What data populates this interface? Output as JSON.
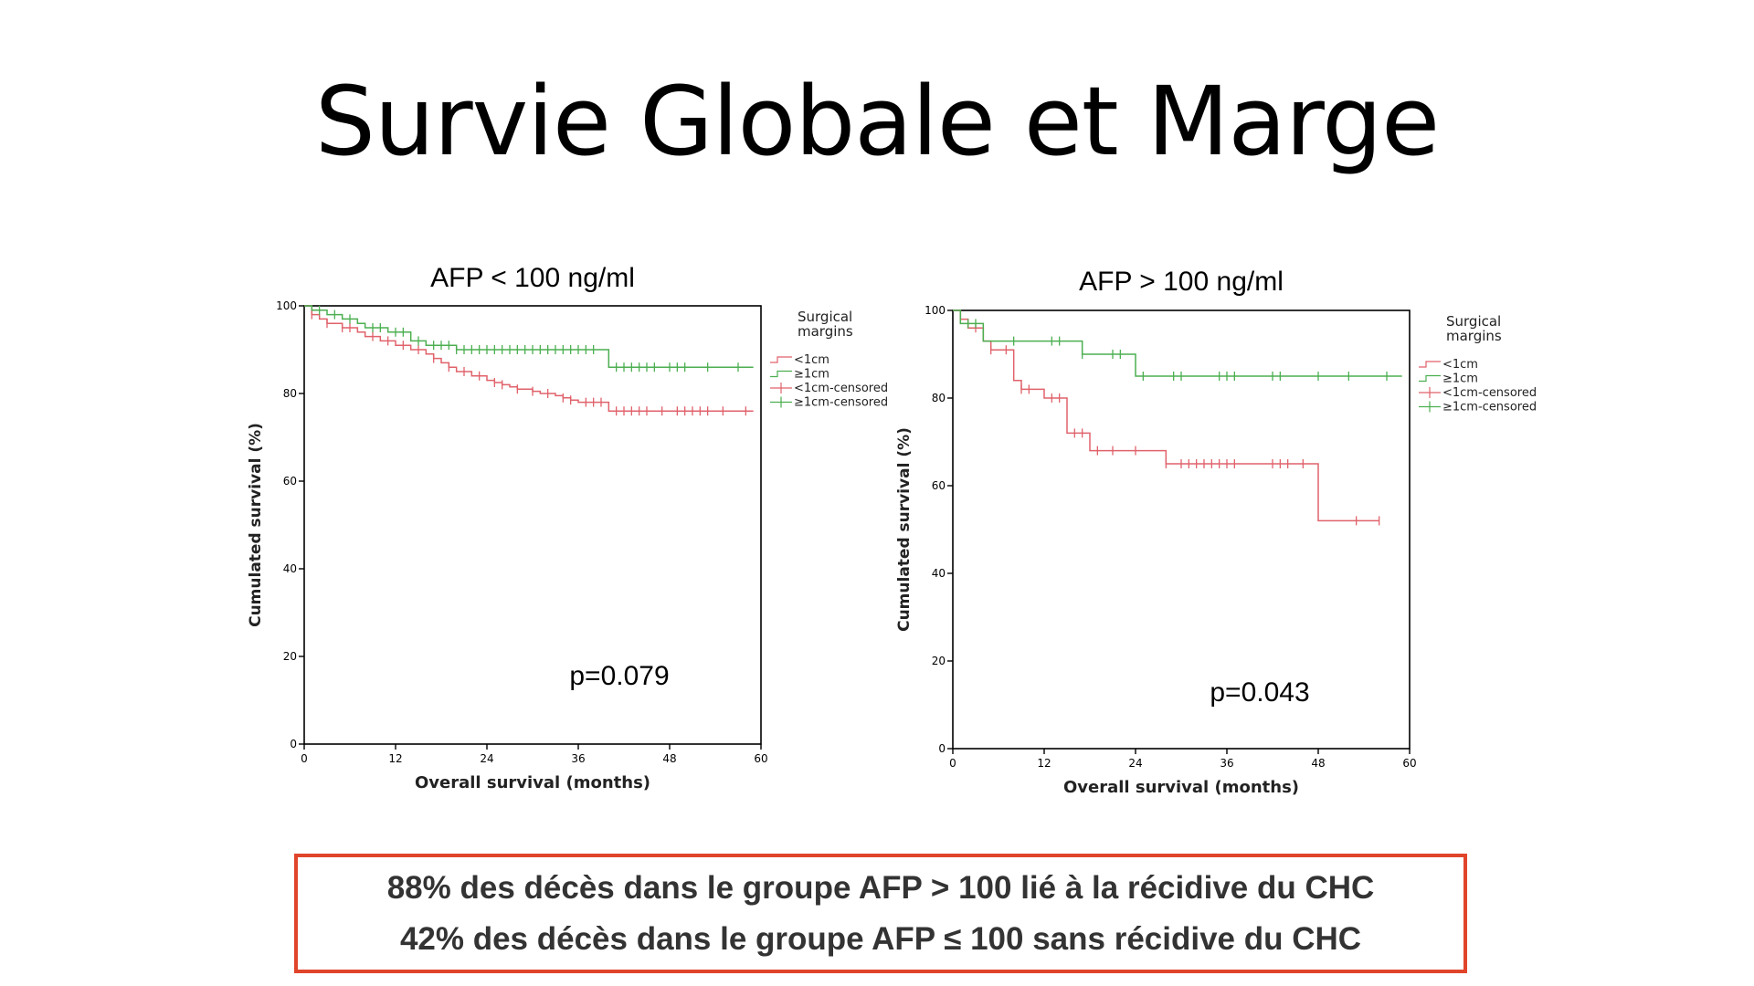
{
  "slide": {
    "title": "Survie Globale et Marge"
  },
  "colors": {
    "lt1cm": "#e0626b",
    "ge1cm": "#4caf50",
    "axis": "#000000",
    "box_border": "#e0452b"
  },
  "chart_data": [
    {
      "type": "line",
      "step": true,
      "title": "AFP < 100 ng/ml",
      "xlabel": "Overall survival (months)",
      "ylabel": "Cumulated survival (%)",
      "xlim": [
        0,
        60
      ],
      "ylim": [
        0,
        100
      ],
      "xticks": [
        0,
        12,
        24,
        36,
        48,
        60
      ],
      "yticks": [
        0,
        20,
        40,
        60,
        80,
        100
      ],
      "annotation": "p=0.079",
      "legend": {
        "title": "Surgical\nmargins",
        "entries": [
          "<1cm",
          "≥1cm",
          "<1cm-censored",
          "≥1cm-censored"
        ],
        "placement": "right"
      },
      "series": [
        {
          "name": "<1cm",
          "color_key": "lt1cm",
          "x": [
            0,
            1,
            2,
            3,
            5,
            7,
            8,
            10,
            12,
            14,
            16,
            17,
            18,
            19,
            20,
            22,
            24,
            25,
            26,
            27,
            28,
            30,
            31,
            33,
            34,
            35,
            36,
            40,
            59
          ],
          "y": [
            100,
            98,
            97,
            96,
            95,
            94,
            93,
            92,
            91,
            90,
            89,
            88,
            87,
            86,
            85,
            84,
            83,
            82.5,
            82,
            81.5,
            81,
            80.5,
            80,
            79.5,
            79,
            78.5,
            78,
            76,
            76
          ],
          "censored_x": [
            1,
            3,
            5,
            6,
            9,
            11,
            13,
            15,
            17,
            19,
            21,
            23,
            25,
            26,
            28,
            30,
            32,
            34,
            35,
            37,
            38,
            39,
            41,
            42,
            43,
            44,
            45,
            47,
            49,
            50,
            51,
            52,
            53,
            55,
            58
          ]
        },
        {
          "name": "≥1cm",
          "color_key": "ge1cm",
          "x": [
            0,
            1,
            3,
            5,
            7,
            8,
            11,
            14,
            16,
            20,
            40,
            59
          ],
          "y": [
            100,
            99,
            98,
            97,
            96,
            95,
            94,
            92,
            91,
            90,
            86,
            86
          ],
          "censored_x": [
            2,
            4,
            6,
            9,
            10,
            12,
            13,
            15,
            17,
            18,
            19,
            20,
            21,
            22,
            23,
            24,
            25,
            26,
            27,
            28,
            29,
            30,
            31,
            32,
            33,
            34,
            35,
            36,
            37,
            38,
            41,
            42,
            43,
            44,
            45,
            46,
            48,
            49,
            50,
            53,
            57
          ]
        }
      ]
    },
    {
      "type": "line",
      "step": true,
      "title": "AFP > 100 ng/ml",
      "xlabel": "Overall survival (months)",
      "ylabel": "Cumulated survival (%)",
      "xlim": [
        0,
        60
      ],
      "ylim": [
        0,
        100
      ],
      "xticks": [
        0,
        12,
        24,
        36,
        48,
        60
      ],
      "yticks": [
        0,
        20,
        40,
        60,
        80,
        100
      ],
      "annotation": "p=0.043",
      "legend": {
        "title": "Surgical\nmargins",
        "entries": [
          "<1cm",
          "≥1cm",
          "<1cm-censored",
          "≥1cm-censored"
        ],
        "placement": "right"
      },
      "series": [
        {
          "name": "<1cm",
          "color_key": "lt1cm",
          "x": [
            0,
            1,
            2,
            4,
            5,
            8,
            9,
            12,
            15,
            18,
            28,
            48,
            56
          ],
          "y": [
            100,
            98,
            96,
            93,
            91,
            84,
            82,
            80,
            72,
            68,
            65,
            52,
            52
          ],
          "censored_x": [
            1,
            3,
            5,
            7,
            9,
            10,
            13,
            14,
            16,
            17,
            19,
            21,
            24,
            28,
            30,
            31,
            32,
            33,
            34,
            35,
            36,
            37,
            42,
            43,
            44,
            46,
            53,
            56
          ]
        },
        {
          "name": "≥1cm",
          "color_key": "ge1cm",
          "x": [
            0,
            1,
            4,
            17,
            24,
            59
          ],
          "y": [
            100,
            97,
            93,
            90,
            85,
            85
          ],
          "censored_x": [
            2,
            3,
            8,
            13,
            14,
            17,
            21,
            22,
            25,
            29,
            30,
            35,
            36,
            37,
            42,
            43,
            48,
            52,
            57
          ]
        }
      ]
    }
  ],
  "bottom_box": {
    "line1": "88% des décès dans le groupe AFP > 100 lié à la récidive du CHC",
    "line2": "42% des décès dans le groupe AFP ≤ 100 sans récidive du CHC"
  }
}
